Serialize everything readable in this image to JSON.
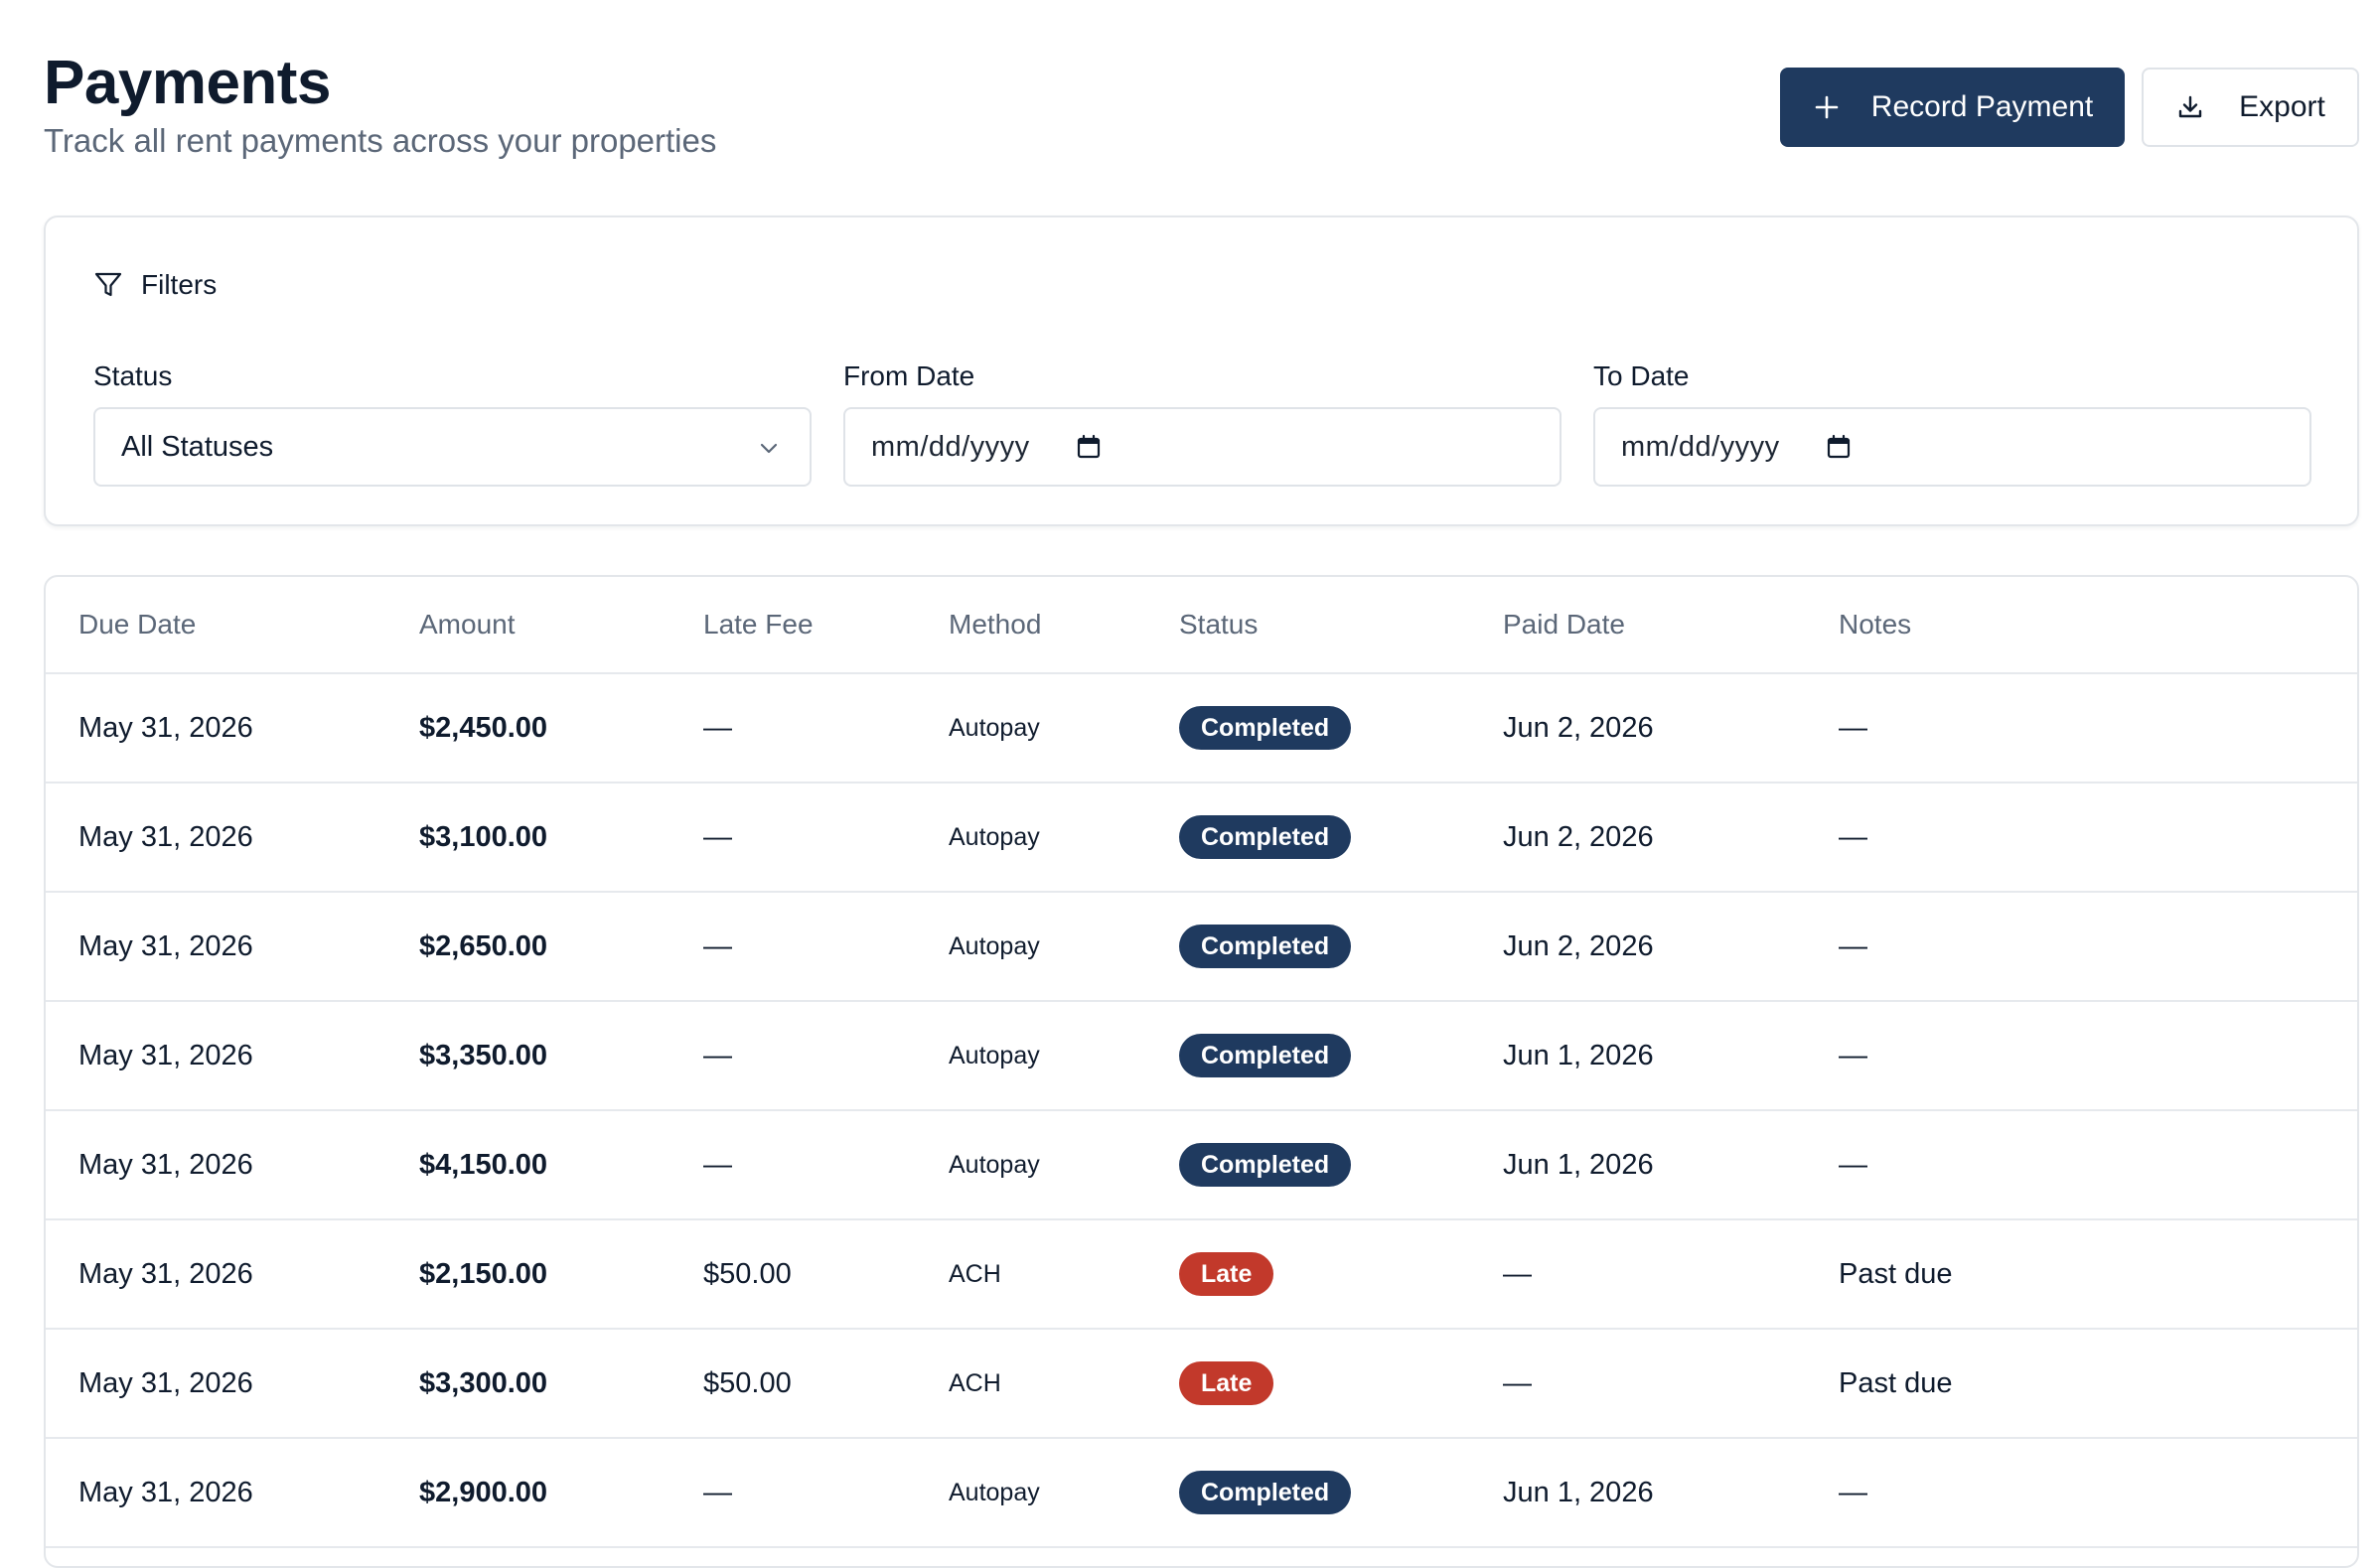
{
  "header": {
    "title": "Payments",
    "subtitle": "Track all rent payments across your properties",
    "record_payment_label": "Record Payment",
    "export_label": "Export"
  },
  "filters": {
    "title": "Filters",
    "status": {
      "label": "Status",
      "selected": "All Statuses"
    },
    "from_date": {
      "label": "From Date",
      "placeholder": "mm/dd/yyyy"
    },
    "to_date": {
      "label": "To Date",
      "placeholder": "mm/dd/yyyy"
    }
  },
  "table": {
    "columns": [
      "Due Date",
      "Amount",
      "Late Fee",
      "Method",
      "Status",
      "Paid Date",
      "Notes"
    ],
    "rows": [
      {
        "due_date": "May 31, 2026",
        "amount": "$2,450.00",
        "late_fee": "—",
        "method": "Autopay",
        "status": "Completed",
        "paid_date": "Jun 2, 2026",
        "notes": "—"
      },
      {
        "due_date": "May 31, 2026",
        "amount": "$3,100.00",
        "late_fee": "—",
        "method": "Autopay",
        "status": "Completed",
        "paid_date": "Jun 2, 2026",
        "notes": "—"
      },
      {
        "due_date": "May 31, 2026",
        "amount": "$2,650.00",
        "late_fee": "—",
        "method": "Autopay",
        "status": "Completed",
        "paid_date": "Jun 2, 2026",
        "notes": "—"
      },
      {
        "due_date": "May 31, 2026",
        "amount": "$3,350.00",
        "late_fee": "—",
        "method": "Autopay",
        "status": "Completed",
        "paid_date": "Jun 1, 2026",
        "notes": "—"
      },
      {
        "due_date": "May 31, 2026",
        "amount": "$4,150.00",
        "late_fee": "—",
        "method": "Autopay",
        "status": "Completed",
        "paid_date": "Jun 1, 2026",
        "notes": "—"
      },
      {
        "due_date": "May 31, 2026",
        "amount": "$2,150.00",
        "late_fee": "$50.00",
        "method": "ACH",
        "status": "Late",
        "paid_date": "—",
        "notes": "Past due"
      },
      {
        "due_date": "May 31, 2026",
        "amount": "$3,300.00",
        "late_fee": "$50.00",
        "method": "ACH",
        "status": "Late",
        "paid_date": "—",
        "notes": "Past due"
      },
      {
        "due_date": "May 31, 2026",
        "amount": "$2,900.00",
        "late_fee": "—",
        "method": "Autopay",
        "status": "Completed",
        "paid_date": "Jun 1, 2026",
        "notes": "—"
      }
    ]
  },
  "colors": {
    "primary": "#1f3a5f",
    "completed_badge": "#1f3a5f",
    "late_badge": "#c2392b",
    "muted_text": "#5b6778",
    "border": "#e3e6ea"
  },
  "icons": {
    "record_payment": "plus-icon",
    "export": "download-icon",
    "filters": "filter-icon",
    "select": "chevron-down-icon",
    "date": "calendar-icon"
  }
}
